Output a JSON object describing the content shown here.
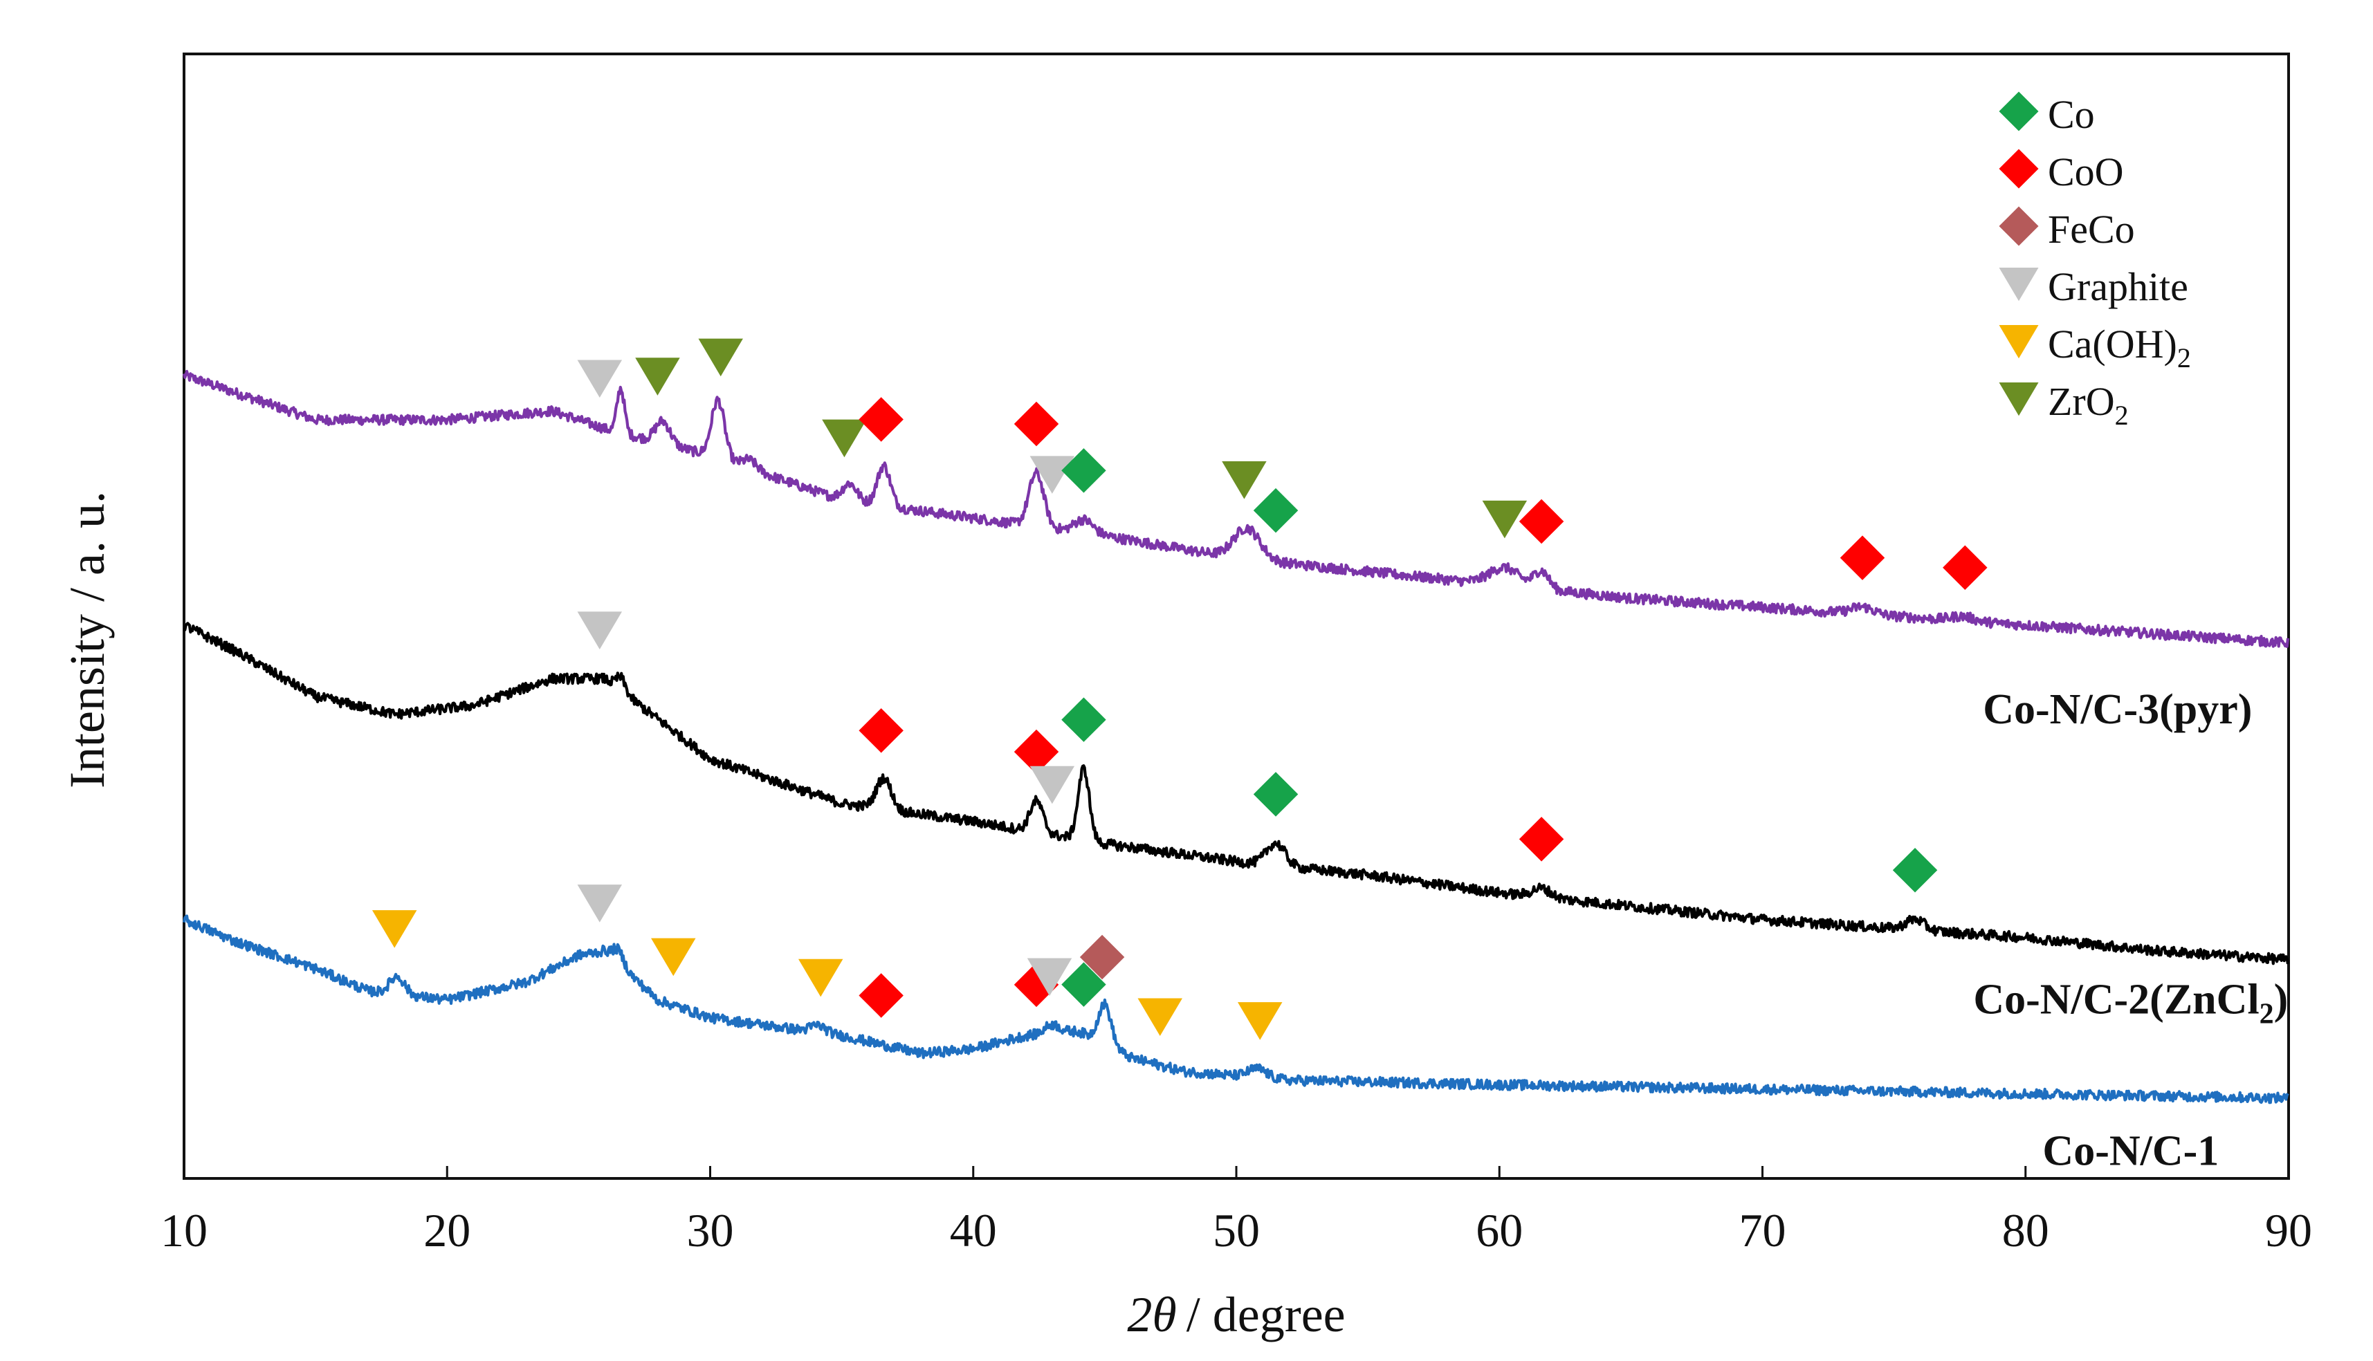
{
  "chart_data": {
    "type": "line",
    "title": "",
    "xlabel_symbol": "2θ",
    "xlabel_unit": "/ degree",
    "ylabel": "Intensity / a. u.",
    "xlim": [
      10,
      90
    ],
    "x_ticks": [
      "10",
      "20",
      "30",
      "40",
      "50",
      "60",
      "70",
      "80",
      "90"
    ],
    "y_ticks_shown": false,
    "grid": false,
    "legend_position": "top-right",
    "legend": [
      {
        "name": "Co",
        "sub": "",
        "marker": "diamond",
        "color": "#16a34a"
      },
      {
        "name": "CoO",
        "sub": "",
        "marker": "diamond",
        "color": "#ff0000"
      },
      {
        "name": "FeCo",
        "sub": "",
        "marker": "diamond",
        "color": "#b55a5a"
      },
      {
        "name": "Graphite",
        "sub": "",
        "marker": "triangle-down",
        "color": "#c4c4c4"
      },
      {
        "name": "Ca(OH)",
        "sub": "2",
        "marker": "triangle-down",
        "color": "#f6b400"
      },
      {
        "name": "ZrO",
        "sub": "2",
        "marker": "triangle-down",
        "color": "#6b8e23"
      }
    ],
    "series": [
      {
        "name": "Co-N/C-3(pyr)",
        "label_main": "Co-N/C-3(pyr)",
        "label_sub": "",
        "label_tail": "",
        "color": "#7b35a8",
        "baseline": [
          [
            10,
            9.0
          ],
          [
            12,
            8.8
          ],
          [
            15,
            8.5
          ],
          [
            20,
            8.5
          ],
          [
            24,
            8.6
          ],
          [
            26,
            8.4
          ],
          [
            30,
            8.1
          ],
          [
            35,
            7.6
          ],
          [
            40,
            7.4
          ],
          [
            45,
            7.2
          ],
          [
            50,
            6.95
          ],
          [
            55,
            6.8
          ],
          [
            60,
            6.65
          ],
          [
            65,
            6.5
          ],
          [
            70,
            6.4
          ],
          [
            75,
            6.3
          ],
          [
            80,
            6.2
          ],
          [
            85,
            6.1
          ],
          [
            90,
            6.0
          ]
        ],
        "peaks": [
          [
            26.6,
            0.5,
            0.2
          ],
          [
            28.2,
            0.25,
            0.4
          ],
          [
            30.3,
            0.65,
            0.35
          ],
          [
            31.5,
            0.1,
            0.4
          ],
          [
            35.3,
            0.2,
            0.4
          ],
          [
            36.6,
            0.45,
            0.35
          ],
          [
            42.4,
            0.6,
            0.4
          ],
          [
            44.2,
            0.15,
            0.5
          ],
          [
            50.4,
            0.35,
            0.7
          ],
          [
            60.2,
            0.2,
            0.8
          ],
          [
            61.6,
            0.2,
            0.4
          ],
          [
            73.8,
            0.08,
            0.6
          ],
          [
            77.6,
            0.05,
            0.6
          ]
        ],
        "label_x": 83.5,
        "label_y": 5.1
      },
      {
        "name": "Co-N/C-2(ZnCl2)",
        "label_main": "Co-N/C-2(ZnCl",
        "label_sub": "2",
        "label_tail": ")",
        "color": "#000000",
        "baseline": [
          [
            10,
            6.2
          ],
          [
            12,
            5.9
          ],
          [
            15,
            5.4
          ],
          [
            18,
            5.2
          ],
          [
            21,
            5.3
          ],
          [
            24,
            5.6
          ],
          [
            26,
            5.6
          ],
          [
            30,
            4.7
          ],
          [
            35,
            4.2
          ],
          [
            40,
            4.0
          ],
          [
            45,
            3.75
          ],
          [
            50,
            3.55
          ],
          [
            55,
            3.4
          ],
          [
            60,
            3.2
          ],
          [
            65,
            3.05
          ],
          [
            70,
            2.9
          ],
          [
            75,
            2.8
          ],
          [
            80,
            2.7
          ],
          [
            85,
            2.55
          ],
          [
            90,
            2.45
          ]
        ],
        "peaks": [
          [
            26.6,
            0.15,
            0.25
          ],
          [
            36.6,
            0.35,
            0.4
          ],
          [
            42.4,
            0.35,
            0.35
          ],
          [
            44.2,
            0.8,
            0.3
          ],
          [
            51.5,
            0.25,
            0.5
          ],
          [
            61.6,
            0.1,
            0.5
          ],
          [
            75.8,
            0.12,
            0.5
          ]
        ],
        "label_x": 84,
        "label_y": 1.85
      },
      {
        "name": "Co-N/C-1",
        "label_main": "Co-N/C-1",
        "label_sub": "",
        "label_tail": "",
        "color": "#1f6fc0",
        "baseline": [
          [
            10,
            2.9
          ],
          [
            12,
            2.65
          ],
          [
            15,
            2.35
          ],
          [
            17,
            2.1
          ],
          [
            20,
            2.0
          ],
          [
            23,
            2.2
          ],
          [
            25,
            2.5
          ],
          [
            26,
            2.55
          ],
          [
            28,
            2.0
          ],
          [
            30,
            1.8
          ],
          [
            35,
            1.6
          ],
          [
            38,
            1.4
          ],
          [
            40,
            1.45
          ],
          [
            42,
            1.6
          ],
          [
            44,
            1.65
          ],
          [
            46,
            1.35
          ],
          [
            48,
            1.2
          ],
          [
            52,
            1.1
          ],
          [
            60,
            1.05
          ],
          [
            70,
            1.0
          ],
          [
            80,
            0.95
          ],
          [
            90,
            0.9
          ]
        ],
        "peaks": [
          [
            18.1,
            0.2,
            0.4
          ],
          [
            26.5,
            0.15,
            0.3
          ],
          [
            34.1,
            0.08,
            0.4
          ],
          [
            43.0,
            0.1,
            0.4
          ],
          [
            45.0,
            0.45,
            0.35
          ],
          [
            50.8,
            0.1,
            0.5
          ]
        ],
        "label_x": 84,
        "label_y": 0.15
      }
    ],
    "phase_markers": [
      {
        "phase": "Graphite",
        "series": "Co-N/C-3(pyr)",
        "x": 25.8
      },
      {
        "phase": "ZrO2",
        "series": "Co-N/C-3(pyr)",
        "x": 28.0
      },
      {
        "phase": "ZrO2",
        "series": "Co-N/C-3(pyr)",
        "x": 30.4
      },
      {
        "phase": "ZrO2",
        "series": "Co-N/C-3(pyr)",
        "x": 35.1
      },
      {
        "phase": "CoO",
        "series": "Co-N/C-3(pyr)",
        "x": 36.5
      },
      {
        "phase": "CoO",
        "series": "Co-N/C-3(pyr)",
        "x": 42.4
      },
      {
        "phase": "Graphite",
        "series": "Co-N/C-3(pyr)",
        "x": 43.0
      },
      {
        "phase": "Co",
        "series": "Co-N/C-3(pyr)",
        "x": 44.2
      },
      {
        "phase": "ZrO2",
        "series": "Co-N/C-3(pyr)",
        "x": 50.3
      },
      {
        "phase": "Co",
        "series": "Co-N/C-3(pyr)",
        "x": 51.5
      },
      {
        "phase": "ZrO2",
        "series": "Co-N/C-3(pyr)",
        "x": 60.2
      },
      {
        "phase": "CoO",
        "series": "Co-N/C-3(pyr)",
        "x": 61.6
      },
      {
        "phase": "CoO",
        "series": "Co-N/C-3(pyr)",
        "x": 73.8
      },
      {
        "phase": "CoO",
        "series": "Co-N/C-3(pyr)",
        "x": 77.7
      },
      {
        "phase": "Graphite",
        "series": "Co-N/C-2(ZnCl2)",
        "x": 25.8
      },
      {
        "phase": "CoO",
        "series": "Co-N/C-2(ZnCl2)",
        "x": 36.5
      },
      {
        "phase": "CoO",
        "series": "Co-N/C-2(ZnCl2)",
        "x": 42.4
      },
      {
        "phase": "Graphite",
        "series": "Co-N/C-2(ZnCl2)",
        "x": 43.0
      },
      {
        "phase": "Co",
        "series": "Co-N/C-2(ZnCl2)",
        "x": 44.2
      },
      {
        "phase": "Co",
        "series": "Co-N/C-2(ZnCl2)",
        "x": 51.5
      },
      {
        "phase": "CoO",
        "series": "Co-N/C-2(ZnCl2)",
        "x": 61.6
      },
      {
        "phase": "Co",
        "series": "Co-N/C-2(ZnCl2)",
        "x": 75.8
      },
      {
        "phase": "Ca(OH)2",
        "series": "Co-N/C-1",
        "x": 18.0
      },
      {
        "phase": "Graphite",
        "series": "Co-N/C-1",
        "x": 25.8
      },
      {
        "phase": "Ca(OH)2",
        "series": "Co-N/C-1",
        "x": 28.6
      },
      {
        "phase": "Ca(OH)2",
        "series": "Co-N/C-1",
        "x": 34.2
      },
      {
        "phase": "CoO",
        "series": "Co-N/C-1",
        "x": 36.5
      },
      {
        "phase": "CoO",
        "series": "Co-N/C-1",
        "x": 42.4
      },
      {
        "phase": "Graphite",
        "series": "Co-N/C-1",
        "x": 42.9
      },
      {
        "phase": "Co",
        "series": "Co-N/C-1",
        "x": 44.2
      },
      {
        "phase": "FeCo",
        "series": "Co-N/C-1",
        "x": 44.9
      },
      {
        "phase": "Ca(OH)2",
        "series": "Co-N/C-1",
        "x": 47.1
      },
      {
        "phase": "Ca(OH)2",
        "series": "Co-N/C-1",
        "x": 50.9
      }
    ]
  }
}
